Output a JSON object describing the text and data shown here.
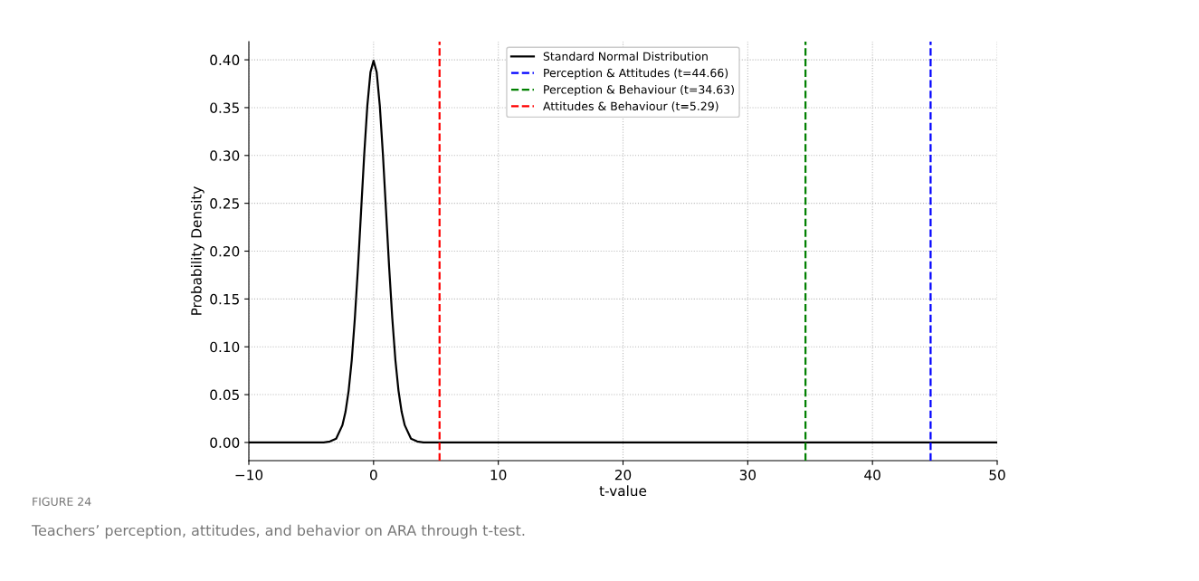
{
  "chart_data": {
    "type": "line",
    "xlabel": "t-value",
    "ylabel": "Probability Density",
    "series": [
      {
        "name": "Standard Normal Distribution",
        "color": "#000000",
        "line_style": "solid",
        "x": [
          -10,
          -4,
          -3.5,
          -3,
          -2.5,
          -2.25,
          -2,
          -1.75,
          -1.5,
          -1.25,
          -1,
          -0.75,
          -0.5,
          -0.25,
          0,
          0.25,
          0.5,
          0.75,
          1,
          1.25,
          1.5,
          1.75,
          2,
          2.25,
          2.5,
          3,
          3.5,
          4,
          50
        ],
        "values": [
          0,
          0,
          0.001,
          0.004,
          0.018,
          0.032,
          0.054,
          0.086,
          0.13,
          0.183,
          0.242,
          0.301,
          0.352,
          0.387,
          0.399,
          0.387,
          0.352,
          0.301,
          0.242,
          0.183,
          0.13,
          0.086,
          0.054,
          0.032,
          0.018,
          0.004,
          0.001,
          0,
          0
        ]
      },
      {
        "name": "Perception & Attitudes (t=44.66)",
        "color": "#0000ff",
        "line_style": "dashed",
        "x": [
          44.66,
          44.66
        ],
        "values": [
          -0.019,
          0.419
        ]
      },
      {
        "name": "Perception & Behaviour (t=34.63)",
        "color": "#008000",
        "line_style": "dashed",
        "x": [
          34.63,
          34.63
        ],
        "values": [
          -0.019,
          0.419
        ]
      },
      {
        "name": "Attitudes & Behaviour (t=5.29)",
        "color": "#ff0000",
        "line_style": "dashed",
        "x": [
          5.29,
          5.29
        ],
        "values": [
          -0.019,
          0.419
        ]
      }
    ],
    "xlim": [
      -10,
      50
    ],
    "xticks": [
      {
        "value": -10,
        "label": "−10"
      },
      0,
      10,
      20,
      30,
      40,
      50
    ],
    "ylim": [
      -0.019,
      0.419
    ],
    "yticks": [
      {
        "value": 0,
        "label": "0.00"
      },
      {
        "value": 0.05,
        "label": "0.05"
      },
      {
        "value": 0.1,
        "label": "0.10"
      },
      {
        "value": 0.15,
        "label": "0.15"
      },
      {
        "value": 0.2,
        "label": "0.20"
      },
      {
        "value": 0.25,
        "label": "0.25"
      },
      {
        "value": 0.3,
        "label": "0.30"
      },
      {
        "value": 0.35,
        "label": "0.35"
      },
      {
        "value": 0.4,
        "label": "0.40"
      }
    ],
    "grid": true,
    "legend": "top",
    "marker": "none",
    "annotations": [
      "FIGURE 24",
      "Teachers’ perception, attitudes, and behavior on ARA through t-test."
    ]
  }
}
